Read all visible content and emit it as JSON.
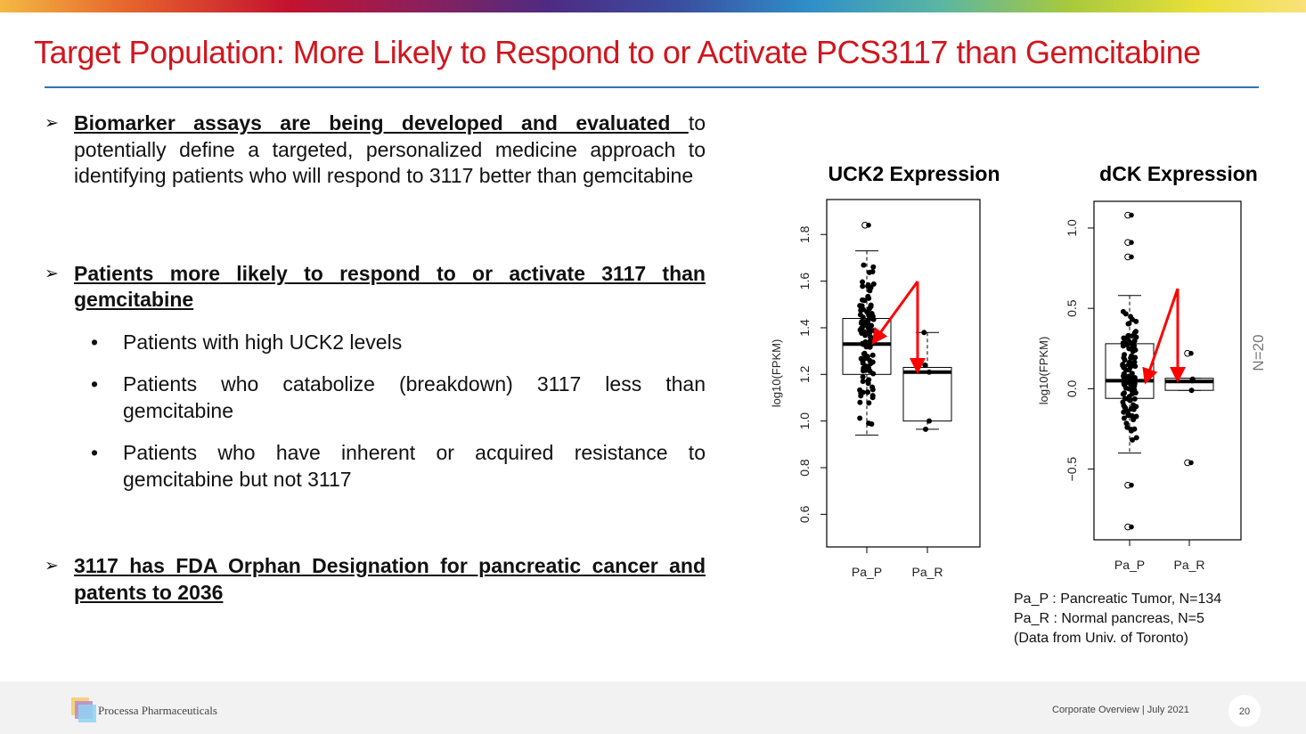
{
  "title": "Target Population: More Likely to Respond to or Activate PCS3117 than Gemcitabine",
  "bullets": [
    {
      "bold": "Biomarker assays are being developed and evaluated ",
      "rest": "to potentially define a targeted, personalized medicine approach to identifying patients who will respond to 3117 better than gemcitabine"
    },
    {
      "bold": "Patients more likely to respond to or activate 3117 than gemcitabine",
      "rest": "",
      "subs": [
        "Patients with high UCK2 levels",
        "Patients who catabolize (breakdown) 3117 less than gemcitabine",
        "Patients who have inherent or acquired resistance to gemcitabine but not 3117"
      ]
    },
    {
      "bold": "3117 has FDA Orphan Designation for pancreatic cancer and patents to 2036",
      "rest": ""
    }
  ],
  "bullet_glyph": "➢",
  "sub_glyph": "•",
  "legend": [
    "Pa_P : Pancreatic Tumor, N=134",
    "Pa_R : Normal pancreas, N=5",
    "(Data from Univ. of Toronto)"
  ],
  "footer": {
    "company": "Processa Pharmaceuticals",
    "text": "Corporate Overview | July 2021",
    "page": "20"
  },
  "colors": {
    "title": "#d0161e",
    "rule": "#2e75b6",
    "arrow": "#ff0000"
  },
  "chart_data": [
    {
      "type": "box",
      "title": "UCK2 Expression",
      "ylabel": "log10(FPKM)",
      "ylim": [
        0.46,
        1.95
      ],
      "yticks": [
        "0.6",
        "0.8",
        "1.0",
        "1.2",
        "1.4",
        "1.6",
        "1.8"
      ],
      "categories": [
        "Pa_P",
        "Pa_R"
      ],
      "annotation": "",
      "boxes": [
        {
          "name": "Pa_P",
          "whisker_low": 0.94,
          "q1": 1.2,
          "median": 1.33,
          "q3": 1.44,
          "whisker_high": 1.73,
          "outliers": [
            1.84
          ]
        },
        {
          "name": "Pa_R",
          "whisker_low": 0.965,
          "q1": 1.0,
          "median": 1.21,
          "q3": 1.23,
          "whisker_high": 1.38,
          "points": [
            1.38,
            1.24,
            1.21,
            1.0,
            0.965
          ]
        }
      ]
    },
    {
      "type": "box",
      "title": "dCK Expression",
      "ylabel": "log10(FPKM)",
      "ylim": [
        -0.94,
        1.166
      ],
      "yticks": [
        "-0.5",
        "0.0",
        "0.5",
        "1.0"
      ],
      "categories": [
        "Pa_P",
        "Pa_R"
      ],
      "annotation": "N=20",
      "boxes": [
        {
          "name": "Pa_P",
          "whisker_low": -0.4,
          "q1": -0.06,
          "median": 0.05,
          "q3": 0.28,
          "whisker_high": 0.58,
          "outliers": [
            1.08,
            0.91,
            0.82,
            -0.6,
            -0.86
          ]
        },
        {
          "name": "Pa_R",
          "whisker_low": -0.01,
          "q1": -0.01,
          "median": 0.045,
          "q3": 0.065,
          "whisker_high": 0.065,
          "outliers": [
            0.22,
            -0.46
          ],
          "points": [
            0.06,
            0.05,
            -0.01
          ]
        }
      ]
    }
  ]
}
